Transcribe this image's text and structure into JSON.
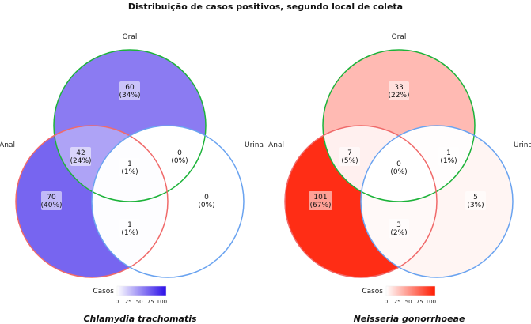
{
  "chart_data": {
    "type": "venn",
    "title": "Distribuição de casos positivos, segundo local de coleta",
    "legend_label": "Casos",
    "legend_ticks": [
      "0",
      "25",
      "50",
      "75",
      "100"
    ],
    "set_labels": {
      "oral": "Oral",
      "anal": "Anal",
      "urina": "Urina"
    },
    "set_colors": {
      "oral": "#1db33a",
      "anal": "#f06a6a",
      "urina": "#6aa3f0"
    },
    "panels": [
      {
        "name": "Chlamydia trachomatis",
        "color_scale": [
          "#ffffff",
          "#2a0de8"
        ],
        "vmin": 0,
        "vmax": 110,
        "regions": [
          {
            "id": "oral_only",
            "value": 60,
            "label": "60",
            "pct": "(34%)"
          },
          {
            "id": "anal_only",
            "value": 70,
            "label": "70",
            "pct": "(40%)"
          },
          {
            "id": "urina_only",
            "value": 0,
            "label": "0",
            "pct": "(0%)"
          },
          {
            "id": "oral_anal",
            "value": 42,
            "label": "42",
            "pct": "(24%)"
          },
          {
            "id": "oral_urina",
            "value": 0,
            "label": "0",
            "pct": "(0%)"
          },
          {
            "id": "anal_urina",
            "value": 1,
            "label": "1",
            "pct": "(1%)"
          },
          {
            "id": "all",
            "value": 1,
            "label": "1",
            "pct": "(1%)"
          }
        ]
      },
      {
        "name": "Neisseria gonorrhoeae",
        "color_scale": [
          "#ffffff",
          "#ff1a00"
        ],
        "vmin": 0,
        "vmax": 110,
        "regions": [
          {
            "id": "oral_only",
            "value": 33,
            "label": "33",
            "pct": "(22%)"
          },
          {
            "id": "anal_only",
            "value": 101,
            "label": "101",
            "pct": "(67%)"
          },
          {
            "id": "urina_only",
            "value": 5,
            "label": "5",
            "pct": "(3%)"
          },
          {
            "id": "oral_anal",
            "value": 7,
            "label": "7",
            "pct": "(5%)"
          },
          {
            "id": "oral_urina",
            "value": 1,
            "label": "1",
            "pct": "(1%)"
          },
          {
            "id": "anal_urina",
            "value": 3,
            "label": "3",
            "pct": "(2%)"
          },
          {
            "id": "all",
            "value": 0,
            "label": "0",
            "pct": "(0%)"
          }
        ]
      }
    ]
  }
}
